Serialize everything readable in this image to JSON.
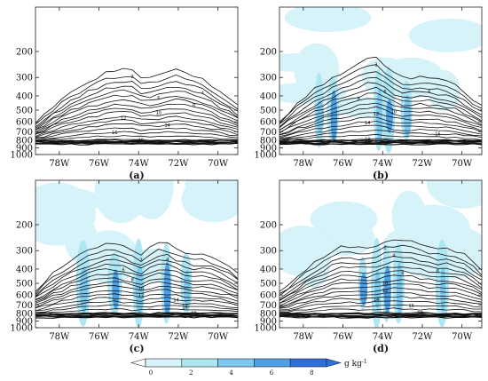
{
  "colors": {
    "shade_levels": [
      "#d6f3f9",
      "#aee6f3",
      "#7cc8ef",
      "#4d9fe6",
      "#2f6fdb"
    ],
    "contour": "#111111",
    "frame": "#222222"
  },
  "colorbar": {
    "ticks": [
      "0",
      "2",
      "4",
      "6",
      "8"
    ],
    "unit_main": "g kg",
    "unit_exp": "-1"
  },
  "chart_data": [
    {
      "type": "contour",
      "panel_label": "(a)",
      "xlabel": "",
      "ylabel": "",
      "x_ticks": [
        "78W",
        "76W",
        "74W",
        "72W",
        "70W"
      ],
      "x_tick_values": [
        -78,
        -76,
        -74,
        -72,
        -70
      ],
      "xlim": [
        -79.2,
        -69.0
      ],
      "y_ticks": [
        "200",
        "300",
        "400",
        "500",
        "600",
        "700",
        "800",
        "900",
        "1000"
      ],
      "y_tick_values": [
        200,
        300,
        400,
        500,
        600,
        700,
        800,
        900,
        1000
      ],
      "ylim": [
        1000,
        100
      ],
      "y_scale": "log-pressure",
      "shading": "none",
      "contour_labels": [
        "2",
        "4",
        "6",
        "8",
        "10",
        "12",
        "14",
        "16",
        "18"
      ],
      "outer_contour_top_hPa": [
        620,
        540,
        470,
        420,
        380,
        350,
        320,
        300,
        280,
        270,
        265,
        270,
        300,
        300,
        290,
        270,
        265,
        275,
        290,
        310,
        340,
        380,
        420,
        470
      ]
    },
    {
      "type": "contour",
      "panel_label": "(b)",
      "xlabel": "",
      "ylabel": "",
      "x_ticks": [
        "78W",
        "76W",
        "74W",
        "72W",
        "70W"
      ],
      "x_tick_values": [
        -78,
        -76,
        -74,
        -72,
        -70
      ],
      "xlim": [
        -79.2,
        -69.0
      ],
      "y_ticks": [
        "200",
        "300",
        "400",
        "500",
        "600",
        "700",
        "800",
        "900",
        "1000"
      ],
      "y_tick_values": [
        200,
        300,
        400,
        500,
        600,
        700,
        800,
        900,
        1000
      ],
      "ylim": [
        1000,
        100
      ],
      "y_scale": "log-pressure",
      "shading": "difference, 0 to 8 g kg-1",
      "contour_labels": [
        "2",
        "4",
        "6",
        "8",
        "10",
        "12",
        "14",
        "16",
        "18"
      ],
      "outer_contour_top_hPa": [
        600,
        520,
        450,
        400,
        360,
        330,
        300,
        280,
        260,
        240,
        225,
        220,
        250,
        280,
        300,
        300,
        295,
        300,
        310,
        320,
        340,
        380,
        420,
        470
      ]
    },
    {
      "type": "contour",
      "panel_label": "(c)",
      "xlabel": "",
      "ylabel": "",
      "x_ticks": [
        "78W",
        "76W",
        "74W",
        "72W",
        "70W"
      ],
      "x_tick_values": [
        -78,
        -76,
        -74,
        -72,
        -70
      ],
      "xlim": [
        -79.2,
        -69.0
      ],
      "y_ticks": [
        "200",
        "300",
        "400",
        "500",
        "600",
        "700",
        "800",
        "900",
        "1000"
      ],
      "y_tick_values": [
        200,
        300,
        400,
        500,
        600,
        700,
        800,
        900,
        1000
      ],
      "ylim": [
        1000,
        100
      ],
      "y_scale": "log-pressure",
      "shading": "difference, 0 to 8 g kg-1",
      "contour_labels": [
        "2",
        "4",
        "6",
        "8",
        "10",
        "12",
        "14",
        "16",
        "18"
      ],
      "outer_contour_top_hPa": [
        560,
        490,
        430,
        390,
        350,
        320,
        300,
        280,
        270,
        270,
        280,
        300,
        320,
        290,
        270,
        270,
        290,
        310,
        320,
        320,
        330,
        350,
        380,
        430
      ]
    },
    {
      "type": "contour",
      "panel_label": "(d)",
      "xlabel": "",
      "ylabel": "",
      "x_ticks": [
        "78W",
        "76W",
        "74W",
        "72W",
        "70W"
      ],
      "x_tick_values": [
        -78,
        -76,
        -74,
        -72,
        -70
      ],
      "xlim": [
        -79.2,
        -69.0
      ],
      "y_ticks": [
        "200",
        "300",
        "400",
        "500",
        "600",
        "700",
        "800",
        "900",
        "1000"
      ],
      "y_tick_values": [
        200,
        300,
        400,
        500,
        600,
        700,
        800,
        900,
        1000
      ],
      "ylim": [
        1000,
        100
      ],
      "y_scale": "log-pressure",
      "shading": "difference, 0 to 8 g kg-1",
      "contour_labels": [
        "2",
        "4",
        "6",
        "8",
        "10",
        "12",
        "14",
        "16",
        "18"
      ],
      "outer_contour_top_hPa": [
        580,
        510,
        450,
        400,
        360,
        330,
        300,
        285,
        280,
        285,
        290,
        280,
        260,
        250,
        250,
        260,
        270,
        280,
        290,
        290,
        300,
        320,
        360,
        410
      ]
    }
  ]
}
